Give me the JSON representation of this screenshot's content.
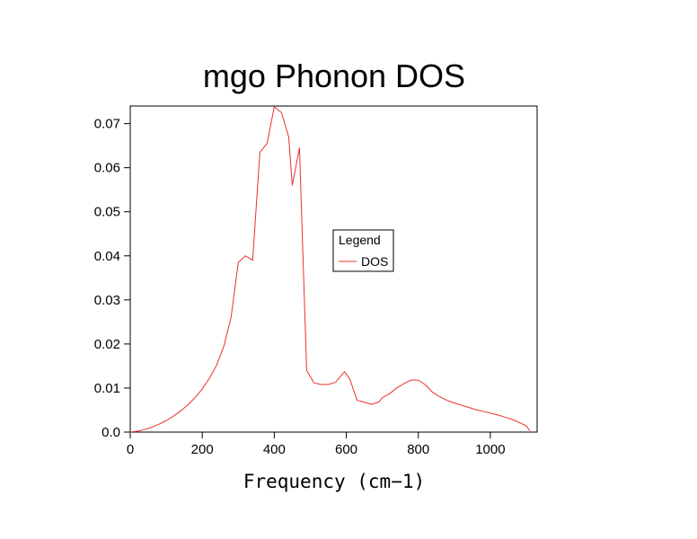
{
  "chart_data": {
    "type": "line",
    "title": "mgo Phonon DOS",
    "xlabel": "Frequency (cm−1)",
    "ylabel": "",
    "xlim": [
      0,
      1130
    ],
    "ylim": [
      0,
      0.074
    ],
    "x_ticks": [
      0,
      200,
      400,
      600,
      800,
      1000
    ],
    "x_tick_labels": [
      "0",
      "200",
      "400",
      "600",
      "800",
      "1000"
    ],
    "y_ticks": [
      0,
      0.01,
      0.02,
      0.03,
      0.04,
      0.05,
      0.06,
      0.07
    ],
    "y_tick_labels": [
      "0.0",
      "0.01",
      "0.02",
      "0.03",
      "0.04",
      "0.05",
      "0.06",
      "0.07"
    ],
    "grid": false,
    "legend": {
      "title": "Legend",
      "position": "center-right"
    },
    "series": [
      {
        "name": "DOS",
        "color": "#e8302a",
        "x": [
          0,
          20,
          40,
          60,
          80,
          100,
          120,
          140,
          160,
          180,
          200,
          220,
          240,
          260,
          280,
          300,
          320,
          340,
          360,
          380,
          400,
          420,
          440,
          450,
          470,
          490,
          510,
          530,
          550,
          570,
          595,
          610,
          630,
          650,
          670,
          690,
          700,
          720,
          740,
          760,
          780,
          800,
          820,
          840,
          860,
          880,
          900,
          920,
          940,
          960,
          980,
          1000,
          1020,
          1040,
          1060,
          1080,
          1100,
          1110
        ],
        "values": [
          0.0,
          0.0002,
          0.0006,
          0.0011,
          0.0018,
          0.0026,
          0.0036,
          0.0048,
          0.0062,
          0.0078,
          0.0098,
          0.0122,
          0.0152,
          0.0195,
          0.026,
          0.0385,
          0.04,
          0.039,
          0.0635,
          0.0655,
          0.0738,
          0.0725,
          0.067,
          0.056,
          0.0645,
          0.014,
          0.0112,
          0.0108,
          0.0108,
          0.0113,
          0.0137,
          0.012,
          0.0072,
          0.0068,
          0.0063,
          0.0068,
          0.0078,
          0.0087,
          0.01,
          0.011,
          0.0118,
          0.0118,
          0.0107,
          0.009,
          0.008,
          0.0072,
          0.0066,
          0.0061,
          0.0056,
          0.0051,
          0.0047,
          0.0043,
          0.0039,
          0.0034,
          0.0029,
          0.0022,
          0.0014,
          0.0003
        ]
      }
    ]
  }
}
